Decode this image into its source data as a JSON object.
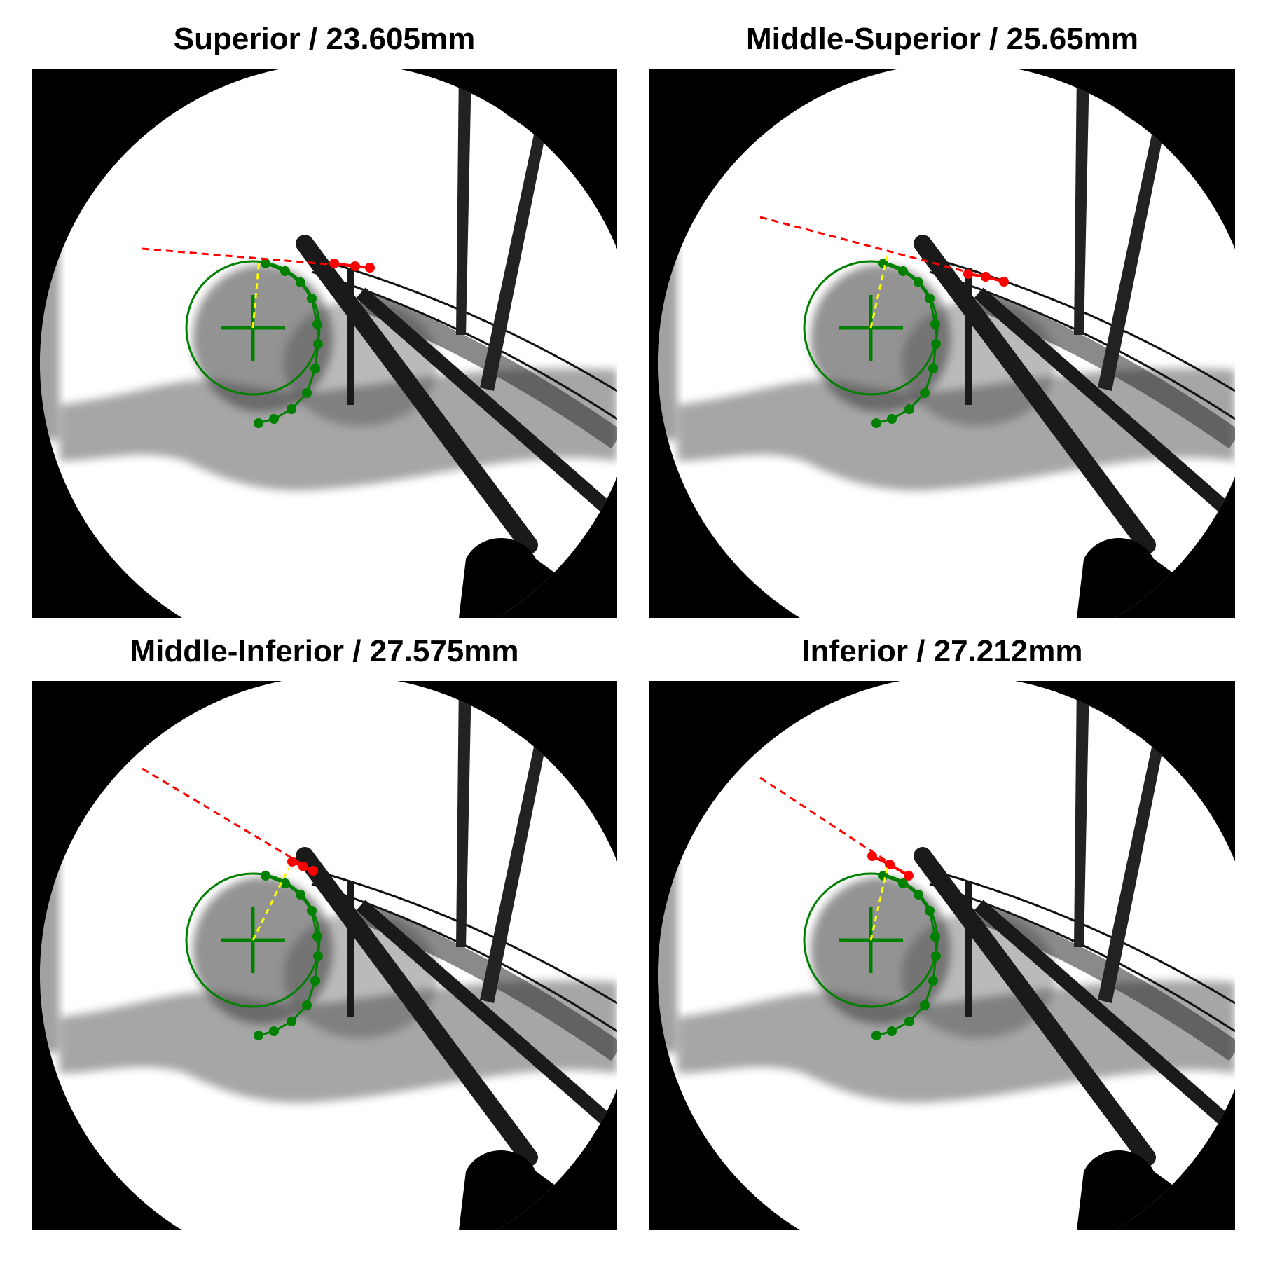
{
  "panels": [
    {
      "title": "Superior / 23.605mm"
    },
    {
      "title": "Middle-Superior / 25.65mm"
    },
    {
      "title": "Middle-Inferior / 27.575mm"
    },
    {
      "title": "Inferior / 27.212mm"
    }
  ],
  "colors": {
    "background": "#ffffff",
    "xray_field": "#ffffff",
    "mask": "#000000",
    "tissue": "#3a3a3a",
    "femoral_head_fit": "#008000",
    "acetabular_points": "#ff0000",
    "reference_line": "#ff0000",
    "radius_line": "#ffff00"
  }
}
